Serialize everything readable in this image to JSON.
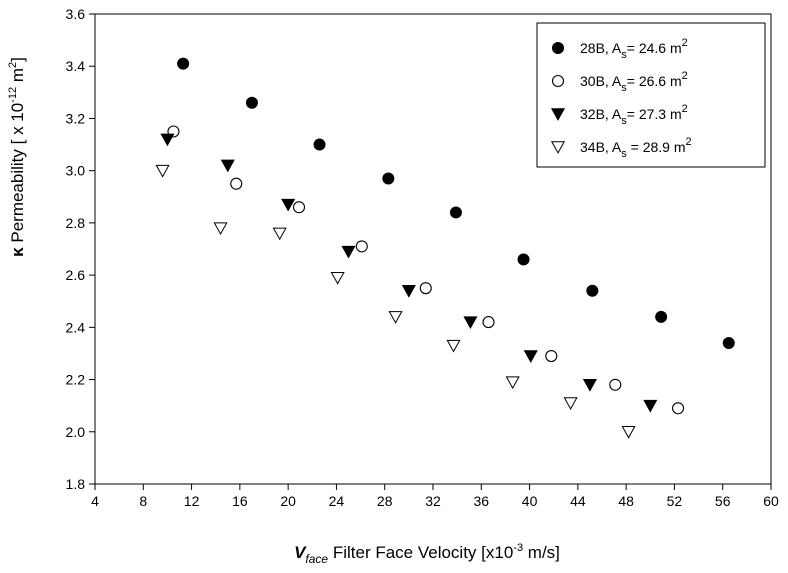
{
  "chart_data": {
    "type": "scatter",
    "title": "",
    "xlabel": {
      "symbol_main": "V",
      "symbol_sub": "face",
      "text": " Filter Face Velocity [x10",
      "exp": "-3",
      "unit": " m/s]"
    },
    "ylabel": {
      "symbol": "κ",
      "text": " Permeability [ x 10",
      "exp": "-12",
      "unit_pre": " m",
      "unit_exp": "2",
      "unit_post": "]"
    },
    "xlim": [
      4,
      60
    ],
    "ylim": [
      1.8,
      3.6
    ],
    "xticks": [
      "4",
      "8",
      "12",
      "16",
      "20",
      "24",
      "28",
      "32",
      "36",
      "40",
      "44",
      "48",
      "52",
      "56",
      "60"
    ],
    "yticks": [
      "1.8",
      "2.0",
      "2.2",
      "2.4",
      "2.6",
      "2.8",
      "3.0",
      "3.2",
      "3.4",
      "3.6"
    ],
    "grid": false,
    "legend_position": "top-right",
    "series": [
      {
        "name": "28B, A_s= 24.6 m^2",
        "legend": {
          "pre": "28B, A",
          "sub": "s",
          "mid": "= 24.6 m",
          "sup": "2"
        },
        "marker": "filled-circle",
        "x": [
          11.3,
          17.0,
          22.6,
          28.3,
          33.9,
          39.5,
          45.2,
          50.9,
          56.5
        ],
        "y": [
          3.41,
          3.26,
          3.1,
          2.97,
          2.84,
          2.66,
          2.54,
          2.44,
          2.34
        ]
      },
      {
        "name": "30B, A_s= 26.6 m^2",
        "legend": {
          "pre": "30B, A",
          "sub": "s",
          "mid": "= 26.6 m",
          "sup": "2"
        },
        "marker": "open-circle",
        "x": [
          10.5,
          15.7,
          20.9,
          26.1,
          31.4,
          36.6,
          41.8,
          47.1,
          52.3
        ],
        "y": [
          3.15,
          2.95,
          2.86,
          2.71,
          2.55,
          2.42,
          2.29,
          2.18,
          2.09
        ]
      },
      {
        "name": "32B, A_s= 27.3 m^2",
        "legend": {
          "pre": "32B, A",
          "sub": "s",
          "mid": "= 27.3 m",
          "sup": "2"
        },
        "marker": "filled-triangle-down",
        "x": [
          10.0,
          15.0,
          20.0,
          25.0,
          30.0,
          35.1,
          40.1,
          45.0,
          50.0
        ],
        "y": [
          3.12,
          3.02,
          2.87,
          2.69,
          2.54,
          2.42,
          2.29,
          2.18,
          2.1
        ]
      },
      {
        "name": "34B, A_s = 28.9 m^2",
        "legend": {
          "pre": "34B, A",
          "sub": "s",
          "mid": " = 28.9 m",
          "sup": "2"
        },
        "marker": "open-triangle-down",
        "x": [
          9.6,
          14.4,
          19.3,
          24.1,
          28.9,
          33.7,
          38.6,
          43.4,
          48.2
        ],
        "y": [
          3.0,
          2.78,
          2.76,
          2.59,
          2.44,
          2.33,
          2.19,
          2.11,
          2.0
        ]
      }
    ]
  }
}
